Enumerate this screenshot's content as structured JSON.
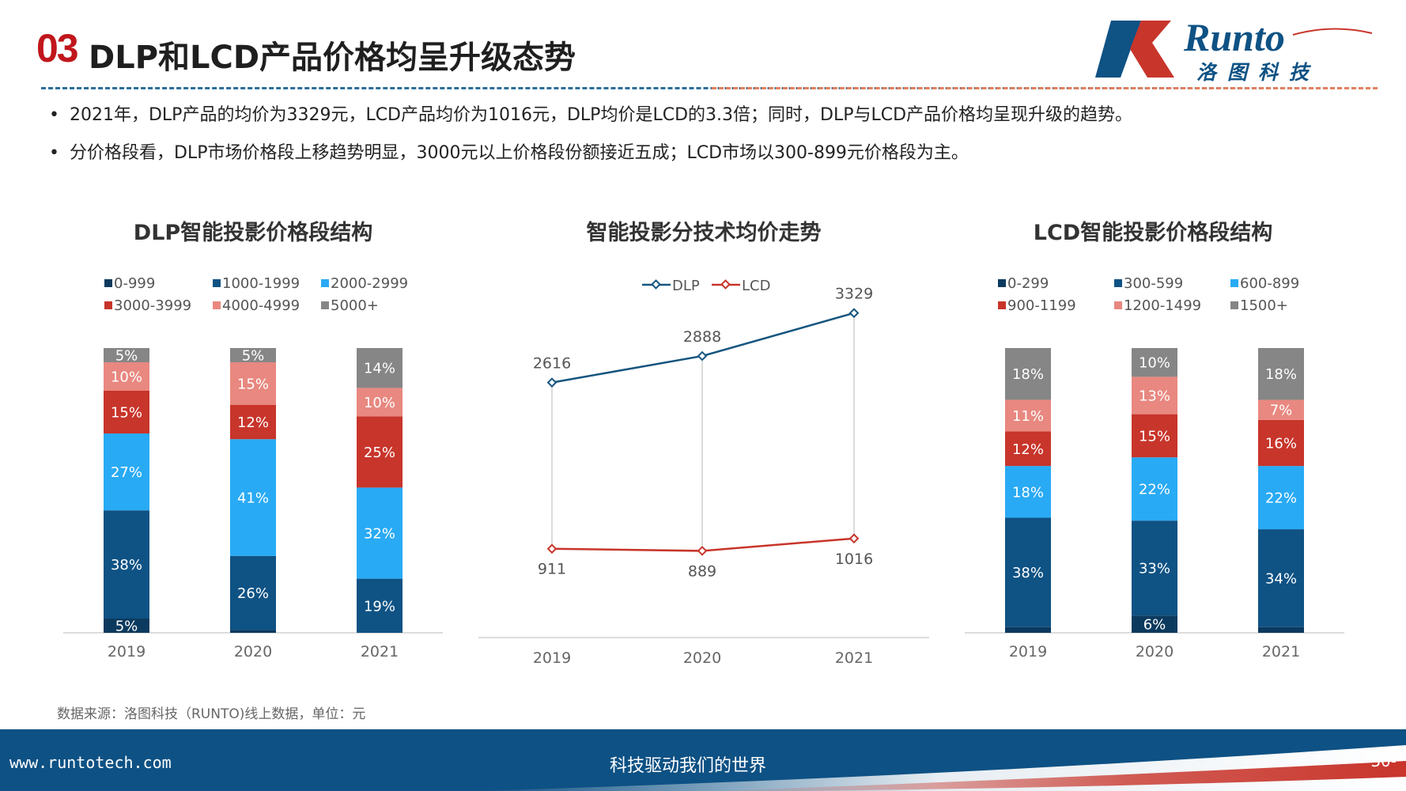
{
  "header": {
    "number": "03",
    "title": "DLP和LCD产品价格均呈升级态势"
  },
  "logo": {
    "text_en": "Runto",
    "text_cn": "洛图科技"
  },
  "bullets": [
    "2021年，DLP产品的均价为3329元，LCD产品均价为1016元，DLP均价是LCD的3.3倍；同时，DLP与LCD产品价格均呈现升级的趋势。",
    "分价格段看，DLP市场价格段上移趋势明显，3000元以上价格段份额接近五成；LCD市场以300-899元价格段为主。"
  ],
  "bullet_marker": "•",
  "colors": {
    "navy": "#0c3a5e",
    "blue": "#0f5284",
    "sky": "#29aaf4",
    "red": "#c8352b",
    "salmon": "#e88880",
    "gray": "#868686",
    "dlp_line": "#15557f",
    "lcd_line": "#c8352b"
  },
  "chart_data": [
    {
      "type": "bar",
      "stacked": true,
      "title": "DLP智能投影价格段结构",
      "categories": [
        "2019",
        "2020",
        "2021"
      ],
      "series": [
        {
          "name": "0-999",
          "color": "#0c3a5e",
          "values": [
            5,
            1,
            0
          ],
          "labels": [
            "5%",
            "",
            ""
          ]
        },
        {
          "name": "1000-1999",
          "color": "#0f5284",
          "values": [
            38,
            26,
            19
          ],
          "labels": [
            "38%",
            "26%",
            "19%"
          ]
        },
        {
          "name": "2000-2999",
          "color": "#29aaf4",
          "values": [
            27,
            41,
            32
          ],
          "labels": [
            "27%",
            "41%",
            "32%"
          ]
        },
        {
          "name": "3000-3999",
          "color": "#c8352b",
          "values": [
            15,
            12,
            25
          ],
          "labels": [
            "15%",
            "12%",
            "25%"
          ]
        },
        {
          "name": "4000-4999",
          "color": "#e88880",
          "values": [
            10,
            15,
            10
          ],
          "labels": [
            "10%",
            "15%",
            "10%"
          ]
        },
        {
          "name": "5000+",
          "color": "#868686",
          "values": [
            5,
            5,
            14
          ],
          "labels": [
            "5%",
            "5%",
            "14%"
          ]
        }
      ],
      "legend_position": "top"
    },
    {
      "type": "line",
      "title": "智能投影分技术均价走势",
      "categories": [
        "2019",
        "2020",
        "2021"
      ],
      "series": [
        {
          "name": "DLP",
          "color": "#15557f",
          "values": [
            2616,
            2888,
            3329
          ],
          "labels": [
            "2616",
            "2888",
            "3329"
          ]
        },
        {
          "name": "LCD",
          "color": "#c8352b",
          "values": [
            911,
            889,
            1016
          ],
          "labels": [
            "911",
            "889",
            "1016"
          ]
        }
      ],
      "ylim": [
        0,
        3700
      ],
      "legend_position": "top"
    },
    {
      "type": "bar",
      "stacked": true,
      "title": "LCD智能投影价格段结构",
      "categories": [
        "2019",
        "2020",
        "2021"
      ],
      "series": [
        {
          "name": "0-299",
          "color": "#0c3a5e",
          "values": [
            2,
            6,
            2
          ],
          "labels": [
            "",
            "6%",
            ""
          ]
        },
        {
          "name": "300-599",
          "color": "#0f5284",
          "values": [
            38,
            33,
            34
          ],
          "labels": [
            "38%",
            "33%",
            "34%"
          ]
        },
        {
          "name": "600-899",
          "color": "#29aaf4",
          "values": [
            18,
            22,
            22
          ],
          "labels": [
            "18%",
            "22%",
            "22%"
          ]
        },
        {
          "name": "900-1199",
          "color": "#c8352b",
          "values": [
            12,
            15,
            16
          ],
          "labels": [
            "12%",
            "15%",
            "16%"
          ]
        },
        {
          "name": "1200-1499",
          "color": "#e88880",
          "values": [
            11,
            13,
            7
          ],
          "labels": [
            "11%",
            "13%",
            "7%"
          ]
        },
        {
          "name": "1500+",
          "color": "#868686",
          "values": [
            18,
            10,
            18
          ],
          "labels": [
            "18%",
            "10%",
            "18%"
          ]
        }
      ],
      "legend_position": "top"
    }
  ],
  "source": "数据来源：洛图科技（RUNTO)线上数据，单位：元",
  "footer": {
    "url": "www.runtotech.com",
    "slogan": "科技驱动我们的世界",
    "page": "-30-"
  }
}
